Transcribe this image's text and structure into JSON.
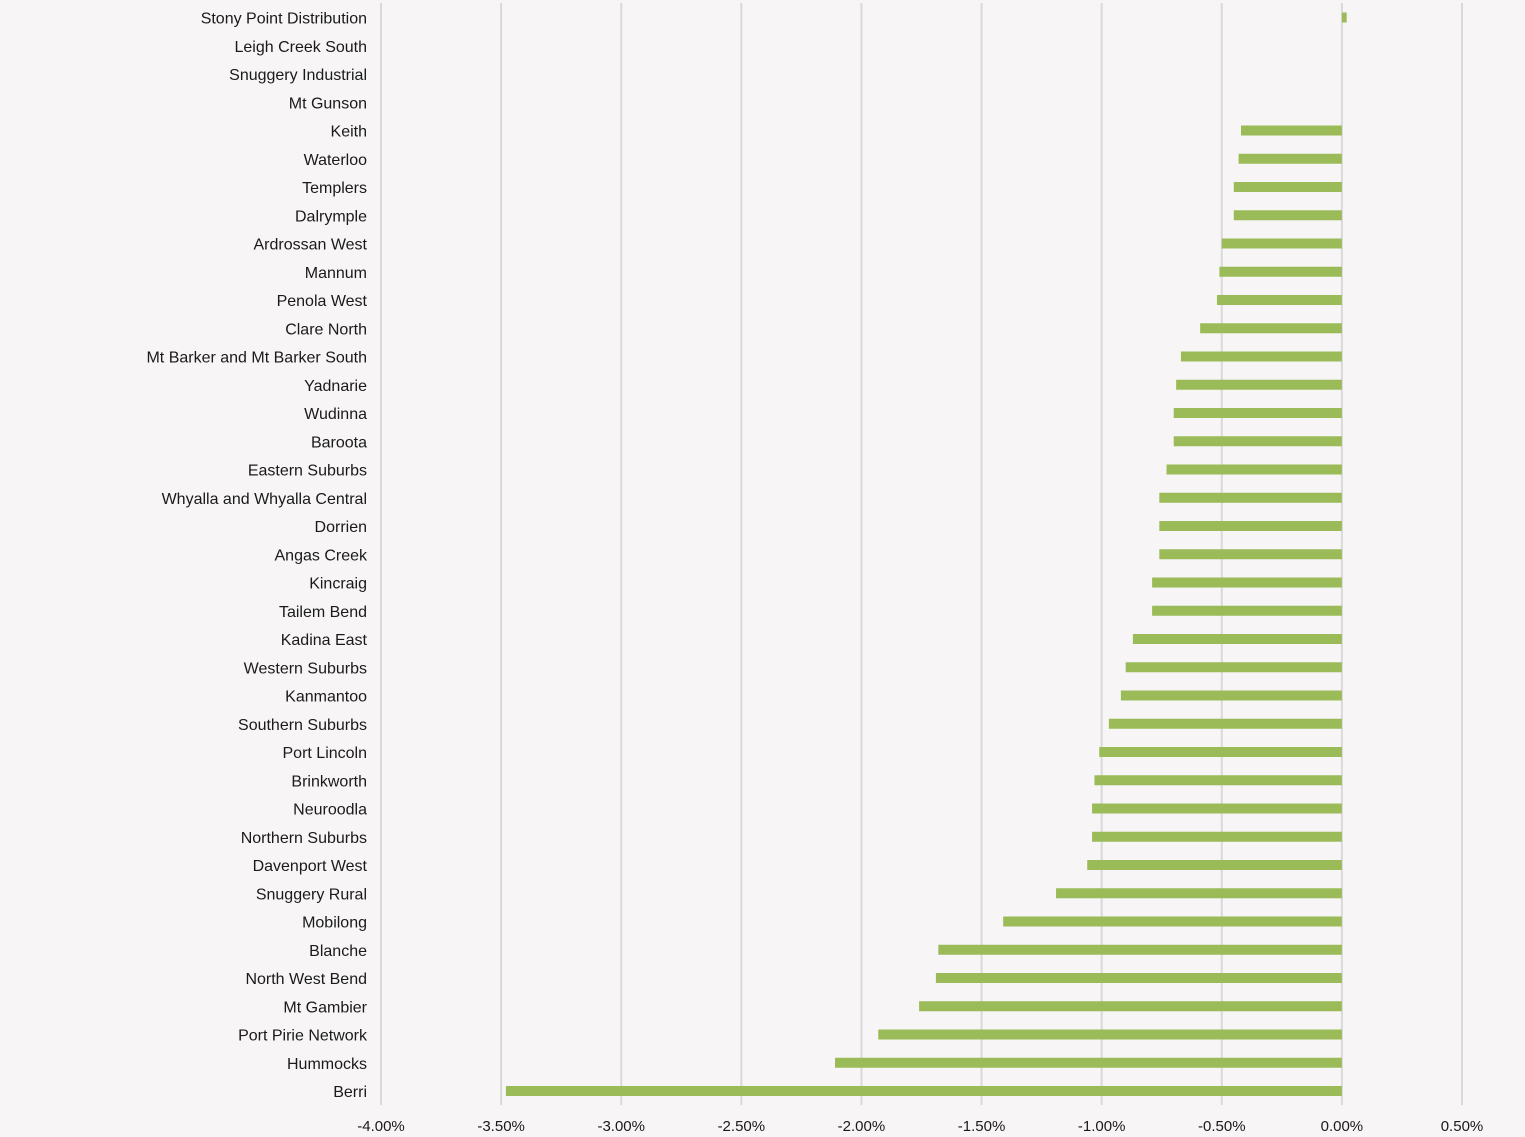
{
  "chart_data": {
    "type": "bar",
    "orientation": "horizontal",
    "title": "",
    "xlabel": "",
    "ylabel": "",
    "xlim": [
      -4.0,
      0.5
    ],
    "x_ticks": [
      -4.0,
      -3.5,
      -3.0,
      -2.5,
      -2.0,
      -1.5,
      -1.0,
      -0.5,
      0.0,
      0.5
    ],
    "x_tick_labels": [
      "-4.00%",
      "-3.50%",
      "-3.00%",
      "-2.50%",
      "-2.00%",
      "-1.50%",
      "-1.00%",
      "-0.50%",
      "0.00%",
      "0.50%"
    ],
    "grid": true,
    "bar_color": "#9bbb59",
    "categories": [
      "Stony Point Distribution",
      "Leigh Creek South",
      "Snuggery Industrial",
      "Mt Gunson",
      "Keith",
      "Waterloo",
      "Templers",
      "Dalrymple",
      "Ardrossan West",
      "Mannum",
      "Penola West",
      "Clare North",
      "Mt Barker and Mt Barker South",
      "Yadnarie",
      "Wudinna",
      "Baroota",
      "Eastern Suburbs",
      "Whyalla and Whyalla Central",
      "Dorrien",
      "Angas Creek",
      "Kincraig",
      "Tailem Bend",
      "Kadina East",
      "Western Suburbs",
      "Kanmantoo",
      "Southern Suburbs",
      "Port Lincoln",
      "Brinkworth",
      "Neuroodla",
      "Northern Suburbs",
      "Davenport West",
      "Snuggery Rural",
      "Mobilong",
      "Blanche",
      "North West Bend",
      "Mt Gambier",
      "Port Pirie Network",
      "Hummocks",
      "Berri"
    ],
    "values": [
      0.02,
      0.0,
      0.0,
      0.0,
      -0.42,
      -0.43,
      -0.45,
      -0.45,
      -0.5,
      -0.51,
      -0.52,
      -0.59,
      -0.67,
      -0.69,
      -0.7,
      -0.7,
      -0.73,
      -0.76,
      -0.76,
      -0.76,
      -0.79,
      -0.79,
      -0.87,
      -0.9,
      -0.92,
      -0.97,
      -1.01,
      -1.03,
      -1.04,
      -1.04,
      -1.06,
      -1.19,
      -1.41,
      -1.68,
      -1.69,
      -1.76,
      -1.93,
      -2.11,
      -3.48
    ]
  }
}
